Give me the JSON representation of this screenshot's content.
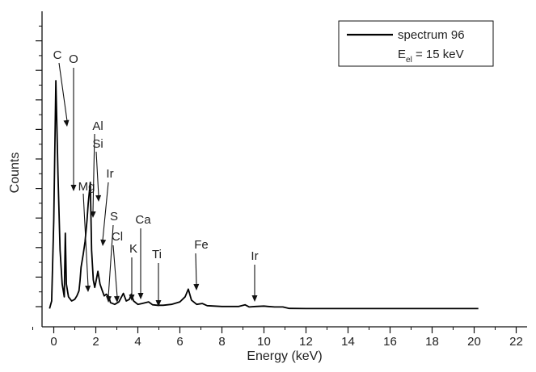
{
  "chart_data": {
    "type": "line",
    "xlabel": "Energy (keV)",
    "ylabel": "Counts",
    "xlim": [
      -1,
      22
    ],
    "x_ticks": [
      "0",
      "2",
      "4",
      "6",
      "8",
      "10",
      "12",
      "14",
      "16",
      "18",
      "20",
      "22"
    ],
    "y_tick_labels": "none",
    "legend": {
      "placement": "top-right",
      "series_name": "spectrum 96",
      "condition_main": "E",
      "condition_sub": "el",
      "condition_rest": " = 15 keV"
    },
    "series": [
      {
        "name": "spectrum 96",
        "color": "#000000",
        "x": [
          -0.2,
          -0.1,
          0.0,
          0.1,
          0.2,
          0.3,
          0.4,
          0.5,
          0.55,
          0.6,
          0.7,
          0.85,
          1.0,
          1.1,
          1.2,
          1.25,
          1.3,
          1.4,
          1.49,
          1.58,
          1.64,
          1.74,
          1.8,
          1.88,
          1.95,
          2.0,
          2.1,
          2.2,
          2.31,
          2.4,
          2.5,
          2.62,
          2.7,
          2.9,
          3.1,
          3.31,
          3.45,
          3.6,
          3.69,
          3.8,
          4.0,
          4.2,
          4.51,
          4.7,
          4.93,
          5.2,
          5.6,
          6.0,
          6.25,
          6.4,
          6.55,
          6.8,
          7.06,
          7.3,
          8.0,
          8.8,
          9.1,
          9.3,
          9.6,
          10.0,
          10.2,
          10.5,
          10.9,
          11.2,
          12.0,
          14.0,
          16.0,
          18.0,
          20.2
        ],
        "y": [
          0.1,
          1.0,
          10.5,
          27.0,
          16.0,
          7.0,
          3.0,
          1.5,
          9.0,
          3.0,
          1.5,
          1.0,
          1.2,
          1.6,
          2.2,
          3.4,
          5.0,
          6.5,
          8.0,
          10.5,
          12.5,
          15.0,
          7.0,
          3.5,
          2.6,
          3.2,
          4.5,
          3.0,
          2.2,
          1.6,
          1.8,
          1.5,
          0.8,
          0.6,
          0.9,
          1.9,
          1.0,
          1.2,
          1.8,
          1.0,
          0.6,
          0.7,
          0.9,
          0.55,
          0.5,
          0.5,
          0.6,
          0.9,
          1.5,
          2.4,
          1.1,
          0.6,
          0.7,
          0.45,
          0.35,
          0.35,
          0.55,
          0.3,
          0.35,
          0.4,
          0.35,
          0.3,
          0.3,
          0.12,
          0.1,
          0.1,
          0.1,
          0.1,
          0.1
        ]
      }
    ],
    "annotations": [
      {
        "label": "C",
        "line_energy": 0.28
      },
      {
        "label": "O",
        "line_energy": 0.52
      },
      {
        "label": "Mg",
        "line_energy": 1.25
      },
      {
        "label": "Al",
        "line_energy": 1.49
      },
      {
        "label": "Si",
        "line_energy": 1.74
      },
      {
        "label": "Ir",
        "line_energy": 1.98
      },
      {
        "label": "S",
        "line_energy": 2.31
      },
      {
        "label": "Cl",
        "line_energy": 2.62
      },
      {
        "label": "K",
        "line_energy": 3.31
      },
      {
        "label": "Ca",
        "line_energy": 3.69
      },
      {
        "label": "Ti",
        "line_energy": 4.51
      },
      {
        "label": "Fe",
        "line_energy": 6.4
      },
      {
        "label": "Ir",
        "line_energy": 9.17
      }
    ]
  }
}
